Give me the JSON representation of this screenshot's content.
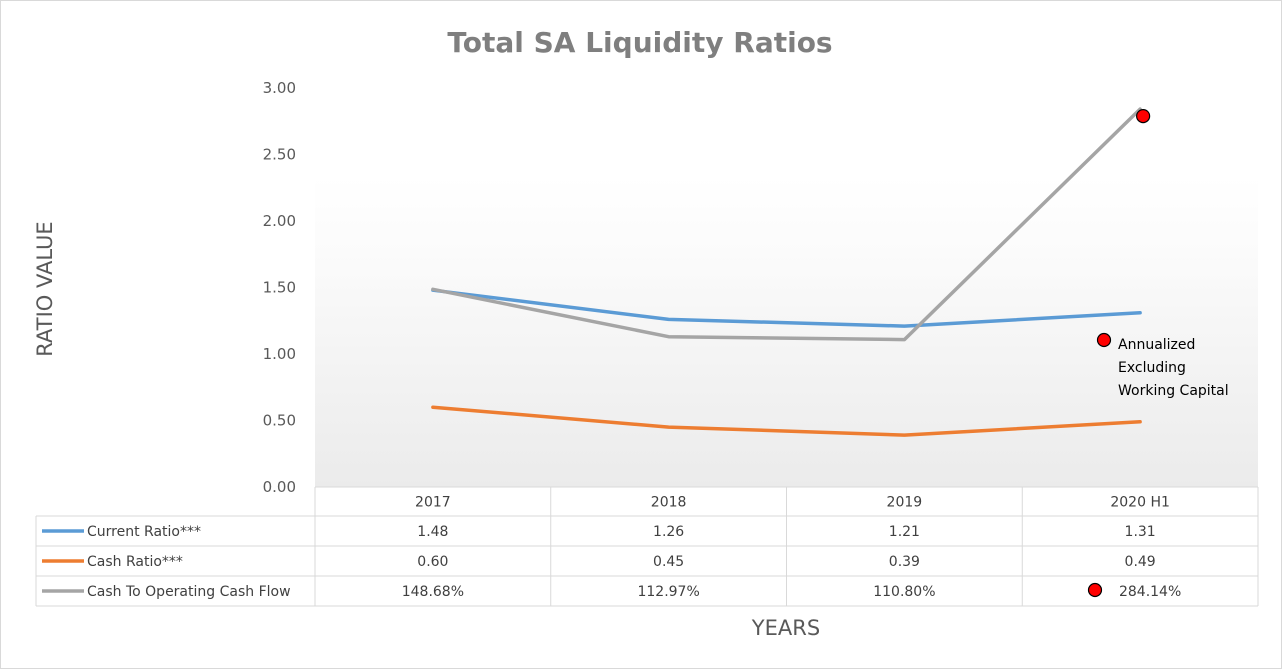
{
  "chart_data": {
    "type": "line",
    "title": "Total SA Liquidity Ratios",
    "xlabel": "YEARS",
    "ylabel": "RATIO VALUE",
    "ylim": [
      0,
      3
    ],
    "ytick_labels": [
      "0.00",
      "0.50",
      "1.00",
      "1.50",
      "2.00",
      "2.50",
      "3.00"
    ],
    "categories": [
      "2017",
      "2018",
      "2019",
      "2020 H1"
    ],
    "legend_placement": "data-table-bottom",
    "series": [
      {
        "name": "Current Ratio***",
        "color": "#5b9bd5",
        "values": [
          1.48,
          1.26,
          1.21,
          1.31
        ],
        "table_values": [
          "1.48",
          "1.26",
          "1.21",
          "1.31"
        ]
      },
      {
        "name": "Cash Ratio***",
        "color": "#ed7d31",
        "values": [
          0.6,
          0.45,
          0.39,
          0.49
        ],
        "table_values": [
          "0.60",
          "0.45",
          "0.39",
          "0.49"
        ]
      },
      {
        "name": "Cash To Operating Cash Flow",
        "color": "#a5a5a5",
        "values": [
          1.4868,
          1.1297,
          1.108,
          2.8414
        ],
        "table_values": [
          "148.68%",
          "112.97%",
          "110.80%",
          "284.14%"
        ]
      }
    ],
    "annotation": {
      "lines": [
        "Annualized",
        "Excluding",
        "Working Capital"
      ],
      "marker_color": "#ff0000"
    }
  }
}
